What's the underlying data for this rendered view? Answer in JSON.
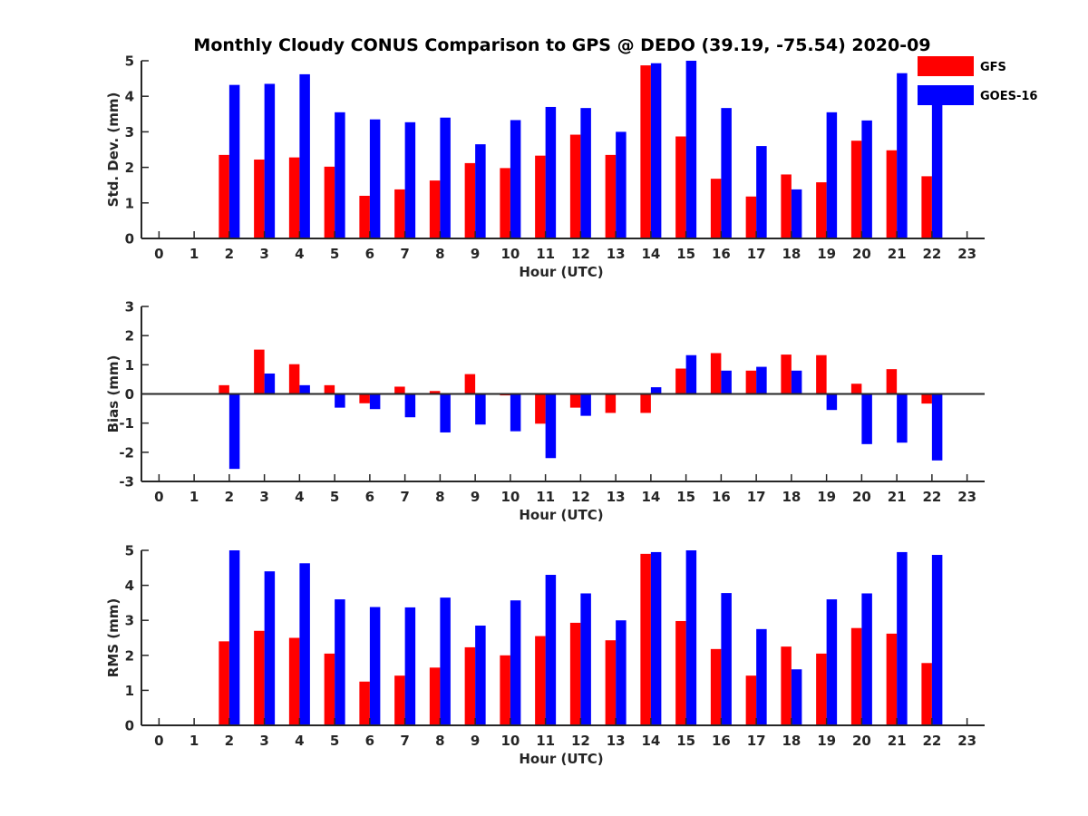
{
  "title": "Monthly Cloudy CONUS Comparison to GPS @ DEDO (39.19, -75.54) 2020-09",
  "colors": {
    "GFS": "#ff0000",
    "GOES-16": "#0000ff",
    "axis": "#262626"
  },
  "legend": {
    "placement": "top-right",
    "entries": [
      "GFS",
      "GOES-16"
    ]
  },
  "chart_data": [
    {
      "type": "bar",
      "ylabel": "Std. Dev. (mm)",
      "xlabel": "Hour (UTC)",
      "x": [
        0,
        1,
        2,
        3,
        4,
        5,
        6,
        7,
        8,
        9,
        10,
        11,
        12,
        13,
        14,
        15,
        16,
        17,
        18,
        19,
        20,
        21,
        22,
        23
      ],
      "ylim": [
        0,
        5
      ],
      "yticks": [
        0,
        1,
        2,
        3,
        4,
        5
      ],
      "xticks": [
        0,
        1,
        2,
        3,
        4,
        5,
        6,
        7,
        8,
        9,
        10,
        11,
        12,
        13,
        14,
        15,
        16,
        17,
        18,
        19,
        20,
        21,
        22,
        23
      ],
      "grid": false,
      "series": [
        {
          "name": "GFS",
          "values": [
            null,
            null,
            2.35,
            2.22,
            2.28,
            2.02,
            1.2,
            1.38,
            1.63,
            2.12,
            1.98,
            2.33,
            2.92,
            2.35,
            4.87,
            2.87,
            1.68,
            1.18,
            1.8,
            1.58,
            2.75,
            2.48,
            1.75,
            null
          ]
        },
        {
          "name": "GOES-16",
          "values": [
            null,
            null,
            4.32,
            4.35,
            4.62,
            3.55,
            3.35,
            3.27,
            3.4,
            2.65,
            3.33,
            3.7,
            3.67,
            3.0,
            4.93,
            5.0,
            3.67,
            2.6,
            1.38,
            3.55,
            3.32,
            4.65,
            4.25,
            null
          ]
        }
      ]
    },
    {
      "type": "bar",
      "ylabel": "Bias (mm)",
      "xlabel": "Hour (UTC)",
      "x": [
        0,
        1,
        2,
        3,
        4,
        5,
        6,
        7,
        8,
        9,
        10,
        11,
        12,
        13,
        14,
        15,
        16,
        17,
        18,
        19,
        20,
        21,
        22,
        23
      ],
      "ylim": [
        -3,
        3
      ],
      "yticks": [
        -3,
        -2,
        -1,
        0,
        1,
        2,
        3
      ],
      "xticks": [
        0,
        1,
        2,
        3,
        4,
        5,
        6,
        7,
        8,
        9,
        10,
        11,
        12,
        13,
        14,
        15,
        16,
        17,
        18,
        19,
        20,
        21,
        22,
        23
      ],
      "grid": false,
      "series": [
        {
          "name": "GFS",
          "values": [
            null,
            null,
            0.3,
            1.52,
            1.02,
            0.3,
            -0.32,
            0.25,
            0.1,
            0.68,
            -0.05,
            -1.02,
            -0.47,
            -0.65,
            -0.65,
            0.87,
            1.4,
            0.8,
            1.35,
            1.33,
            0.35,
            0.85,
            -0.33,
            null
          ]
        },
        {
          "name": "GOES-16",
          "values": [
            null,
            null,
            -2.57,
            0.7,
            0.3,
            -0.47,
            -0.52,
            -0.8,
            -1.32,
            -1.05,
            -1.28,
            -2.2,
            -0.75,
            0.0,
            0.23,
            1.33,
            0.8,
            0.93,
            0.8,
            -0.55,
            -1.72,
            -1.67,
            -2.28,
            null
          ]
        }
      ]
    },
    {
      "type": "bar",
      "ylabel": "RMS (mm)",
      "xlabel": "Hour (UTC)",
      "x": [
        0,
        1,
        2,
        3,
        4,
        5,
        6,
        7,
        8,
        9,
        10,
        11,
        12,
        13,
        14,
        15,
        16,
        17,
        18,
        19,
        20,
        21,
        22,
        23
      ],
      "ylim": [
        0,
        5
      ],
      "yticks": [
        0,
        1,
        2,
        3,
        4,
        5
      ],
      "xticks": [
        0,
        1,
        2,
        3,
        4,
        5,
        6,
        7,
        8,
        9,
        10,
        11,
        12,
        13,
        14,
        15,
        16,
        17,
        18,
        19,
        20,
        21,
        22,
        23
      ],
      "grid": false,
      "series": [
        {
          "name": "GFS",
          "values": [
            null,
            null,
            2.4,
            2.7,
            2.5,
            2.05,
            1.25,
            1.42,
            1.65,
            2.23,
            2.0,
            2.55,
            2.93,
            2.43,
            4.9,
            2.98,
            2.18,
            1.42,
            2.25,
            2.05,
            2.78,
            2.62,
            1.78,
            null
          ]
        },
        {
          "name": "GOES-16",
          "values": [
            null,
            null,
            5.0,
            4.4,
            4.63,
            3.6,
            3.38,
            3.37,
            3.65,
            2.85,
            3.57,
            4.3,
            3.77,
            3.0,
            4.95,
            5.0,
            3.78,
            2.75,
            1.6,
            3.6,
            3.77,
            4.95,
            4.87,
            null
          ]
        }
      ]
    }
  ]
}
